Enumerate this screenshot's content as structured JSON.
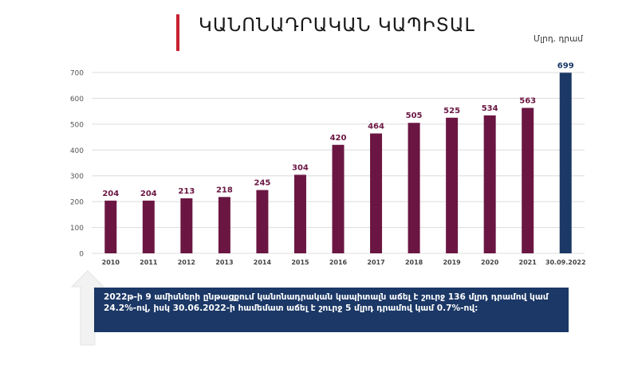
{
  "header": {
    "title": "ԿԱՆՈՆԱԴՐԱԿԱՆ ԿԱՊԻՏԱԼ",
    "unit": "Մլրդ. դրամ"
  },
  "colors": {
    "accent_bar": "#c8202f",
    "bar": "#6b1642",
    "bar_highlight": "#1b3866",
    "note_background": "#1b3866"
  },
  "chart_data": {
    "type": "bar",
    "title": "ԿԱՆՈՆԱԴՐԱԿԱՆ ԿԱՊԻՏԱԼ",
    "xlabel": "",
    "ylabel": "",
    "unit": "Մլրդ. դրամ",
    "categories": [
      "2010",
      "2011",
      "2012",
      "2013",
      "2014",
      "2015",
      "2016",
      "2017",
      "2018",
      "2019",
      "2020",
      "2021",
      "30.09.2022"
    ],
    "values": [
      204,
      204,
      213,
      218,
      245,
      304,
      420,
      464,
      505,
      525,
      534,
      563,
      699
    ],
    "ylim": [
      0,
      700
    ],
    "yticks": [
      0,
      100,
      200,
      300,
      400,
      500,
      600,
      700
    ],
    "grid": true,
    "data_labels": true,
    "highlight_index": 12
  },
  "note": {
    "text": "2022թ-ի 9 ամիսների ընթացքում կանոնադրական կապիտալն աճել է շուրջ 136 մլրդ դրամով կամ 24.2%-ով, իսկ 30.06.2022-ի համեմատ աճել է շուրջ 5 մլրդ դրամով կամ 0.7%-ով:"
  }
}
